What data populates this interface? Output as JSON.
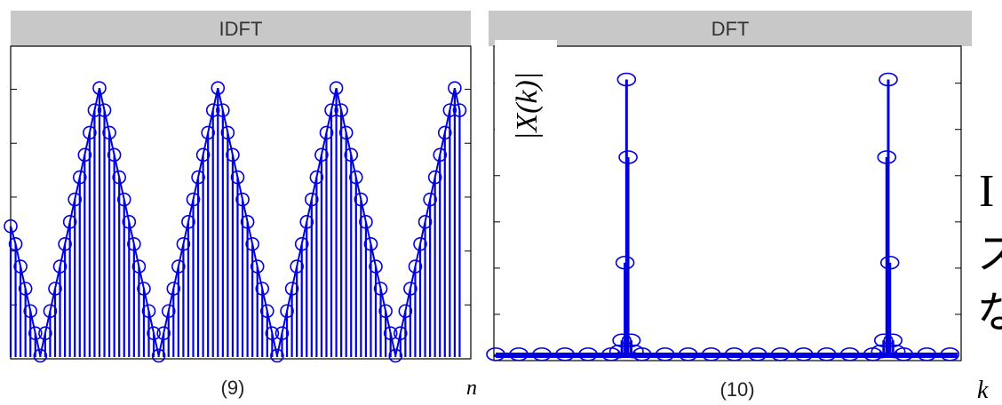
{
  "chart_data": [
    {
      "type": "stem",
      "title": "IDFT",
      "caption": "(9)",
      "xlabel": "n",
      "ylabel": "",
      "xlim": [
        0,
        92
      ],
      "ylim": [
        0,
        1.15
      ],
      "grid": false,
      "x": [
        0,
        1,
        2,
        3,
        4,
        5,
        6,
        7,
        8,
        9,
        10,
        11,
        12,
        13,
        14,
        15,
        16,
        17,
        18,
        19,
        20,
        21,
        22,
        23,
        24,
        25,
        26,
        27,
        28,
        29,
        30,
        31,
        32,
        33,
        34,
        35,
        36,
        37,
        38,
        39,
        40,
        41,
        42,
        43,
        44,
        45,
        46,
        47,
        48,
        49,
        50,
        51,
        52,
        53,
        54,
        55,
        56,
        57,
        58,
        59,
        60,
        61,
        62,
        63,
        64,
        65,
        66,
        67,
        68,
        69,
        70,
        71,
        72,
        73,
        74,
        75,
        76,
        77,
        78,
        79,
        80,
        81,
        82,
        83,
        84,
        85,
        86,
        87,
        88,
        89,
        90,
        91
      ],
      "y": [
        0.484,
        0.418,
        0.335,
        0.253,
        0.17,
        0.088,
        0.005,
        0.088,
        0.17,
        0.253,
        0.335,
        0.418,
        0.5,
        0.583,
        0.665,
        0.748,
        0.83,
        0.913,
        0.995,
        0.913,
        0.83,
        0.748,
        0.665,
        0.583,
        0.5,
        0.418,
        0.335,
        0.253,
        0.17,
        0.088,
        0.005,
        0.088,
        0.17,
        0.253,
        0.335,
        0.418,
        0.5,
        0.583,
        0.665,
        0.748,
        0.83,
        0.913,
        0.995,
        0.913,
        0.83,
        0.748,
        0.665,
        0.583,
        0.5,
        0.418,
        0.335,
        0.253,
        0.17,
        0.088,
        0.005,
        0.088,
        0.17,
        0.253,
        0.335,
        0.418,
        0.5,
        0.583,
        0.665,
        0.748,
        0.83,
        0.913,
        0.995,
        0.913,
        0.83,
        0.748,
        0.665,
        0.583,
        0.5,
        0.418,
        0.335,
        0.253,
        0.17,
        0.088,
        0.005,
        0.088,
        0.17,
        0.253,
        0.335,
        0.418,
        0.5,
        0.583,
        0.665,
        0.748,
        0.83,
        0.913,
        0.995,
        0.913
      ]
    },
    {
      "type": "stem",
      "title": "DFT",
      "caption": "(10)",
      "xlabel": "k",
      "ylabel": "|X(k)|",
      "xlim": [
        0,
        300
      ],
      "ylim": [
        0,
        1.12
      ],
      "grid": false,
      "x": [
        0,
        15,
        30,
        45,
        60,
        75,
        80,
        82,
        84,
        85,
        86,
        88,
        90,
        95,
        110,
        125,
        140,
        155,
        170,
        185,
        200,
        215,
        230,
        245,
        250,
        252,
        254,
        255,
        256,
        258,
        260,
        265,
        280,
        295
      ],
      "y": [
        0.01,
        0.01,
        0.01,
        0.01,
        0.01,
        0.01,
        0.02,
        0.06,
        0.34,
        1.0,
        0.72,
        0.06,
        0.02,
        0.01,
        0.01,
        0.01,
        0.01,
        0.01,
        0.01,
        0.01,
        0.01,
        0.01,
        0.01,
        0.01,
        0.02,
        0.06,
        0.72,
        1.0,
        0.34,
        0.06,
        0.02,
        0.01,
        0.01,
        0.01
      ]
    }
  ],
  "right_margin_glyphs": [
    "I",
    "ス",
    "な"
  ],
  "colors": {
    "stem": "#0000e0",
    "panel_header": "#c8c8c8",
    "axis": "#000000"
  }
}
